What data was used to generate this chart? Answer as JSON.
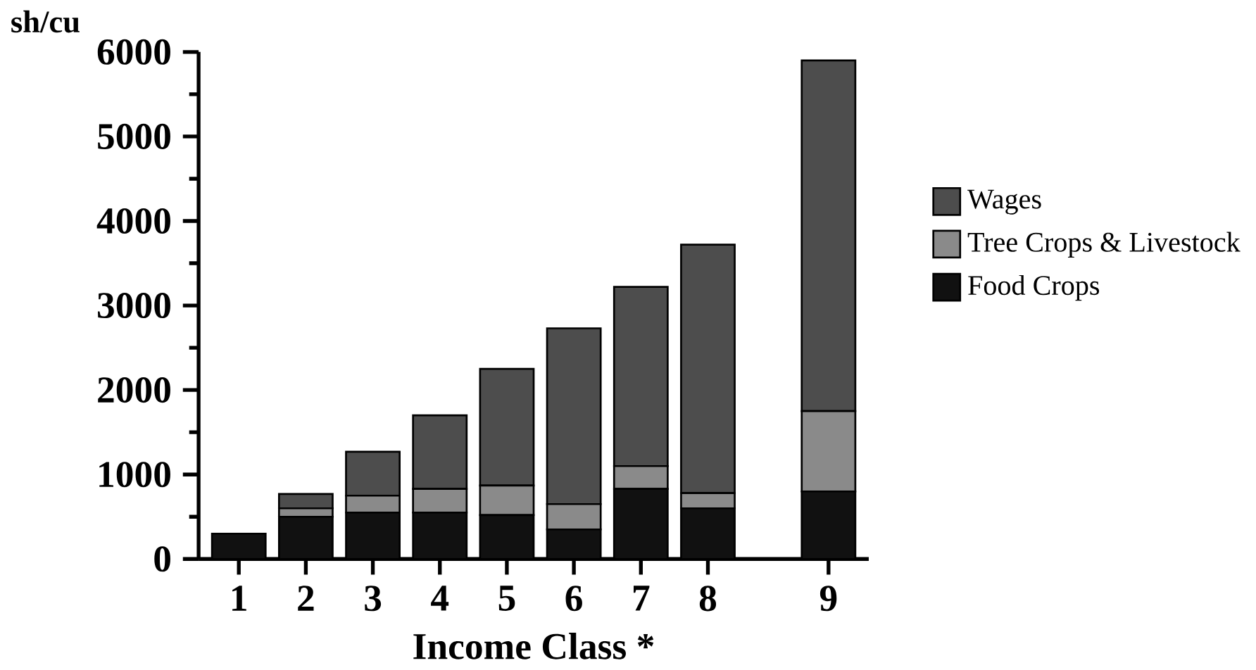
{
  "chart_data": {
    "type": "bar",
    "stacked": true,
    "xlabel": "Income Class *",
    "ylabel": "sh/cu",
    "categories": [
      "1",
      "2",
      "3",
      "4",
      "5",
      "6",
      "7",
      "8",
      "9"
    ],
    "series": [
      {
        "name": "Food Crops",
        "color": "#111111",
        "values": [
          300,
          500,
          550,
          550,
          520,
          350,
          830,
          600,
          800
        ]
      },
      {
        "name": "Tree Crops & Livestock",
        "color": "#8a8a8a",
        "values": [
          0,
          100,
          200,
          280,
          350,
          300,
          270,
          180,
          950
        ]
      },
      {
        "name": "Wages",
        "color": "#4d4d4d",
        "values": [
          0,
          170,
          520,
          870,
          1380,
          2080,
          2120,
          2940,
          4150
        ]
      }
    ],
    "ylim": [
      0,
      6000
    ],
    "yticks": [
      0,
      1000,
      2000,
      3000,
      4000,
      5000,
      6000
    ],
    "legend": "right",
    "grid": false
  }
}
